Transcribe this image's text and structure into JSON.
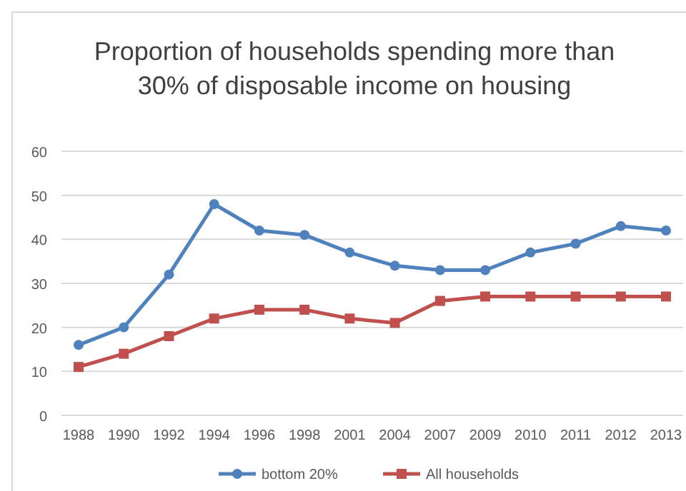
{
  "chart_data": {
    "type": "line",
    "title": "Proportion of households spending more than 30% of disposable income on housing",
    "categories": [
      "1988",
      "1990",
      "1992",
      "1994",
      "1996",
      "1998",
      "2001",
      "2004",
      "2007",
      "2009",
      "2010",
      "2011",
      "2012",
      "2013"
    ],
    "series": [
      {
        "name": "bottom 20%",
        "color": "#4f81bd",
        "marker": "circle",
        "values": [
          16,
          20,
          32,
          48,
          42,
          41,
          37,
          34,
          33,
          33,
          37,
          39,
          43,
          42
        ]
      },
      {
        "name": "All households",
        "color": "#c0504d",
        "marker": "square",
        "values": [
          11,
          14,
          18,
          22,
          24,
          24,
          22,
          21,
          26,
          27,
          27,
          27,
          27,
          27
        ]
      }
    ],
    "ylim": [
      0,
      60
    ],
    "yticks": [
      0,
      10,
      20,
      30,
      40,
      50,
      60
    ],
    "grid": "y",
    "legend": "bottom"
  }
}
